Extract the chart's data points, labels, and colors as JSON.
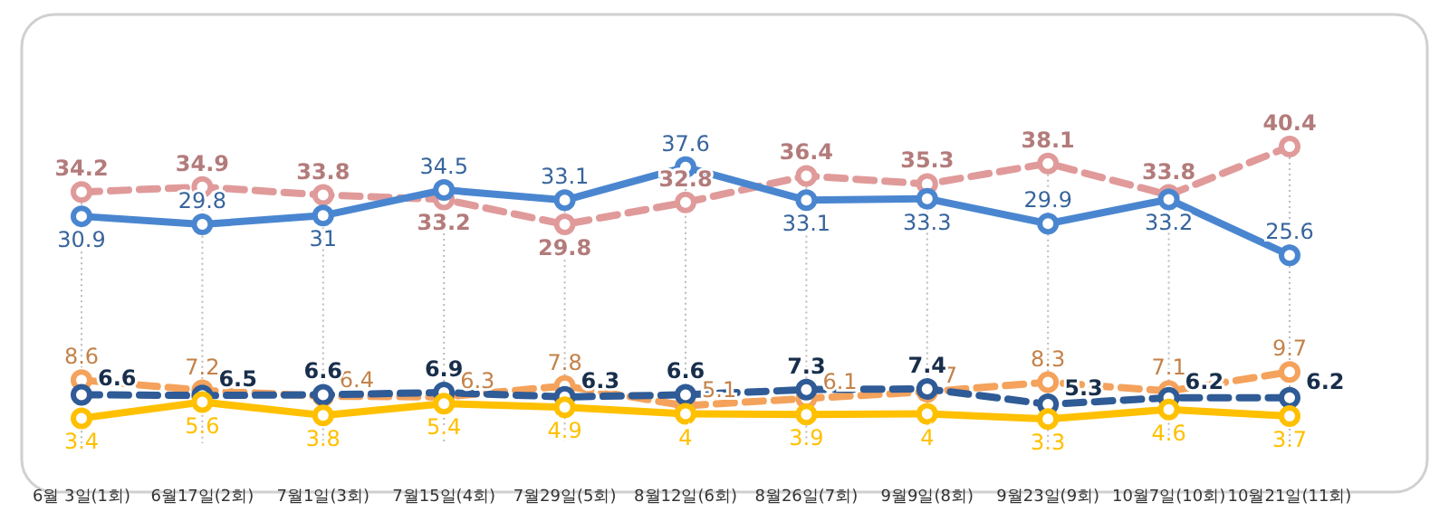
{
  "chart_data": {
    "type": "line",
    "categories": [
      "6월 3일(1회)",
      "6월17일(2회)",
      "7월1일(3회)",
      "7월15일(4회)",
      "7월29일(5회)",
      "8월12일(6회)",
      "8월26일(7회)",
      "9월9일(8회)",
      "9월23일(9회)",
      "10월7일(10회)",
      "10월21일(11회)"
    ],
    "series": [
      {
        "color": "#e09a9a",
        "line_style": "dashed",
        "values": [
          34.2,
          34.9,
          33.8,
          33.2,
          29.8,
          32.8,
          36.4,
          35.3,
          38.1,
          33.8,
          40.4
        ]
      },
      {
        "color": "#4a86d0",
        "line_style": "solid",
        "values": [
          30.9,
          29.8,
          31,
          34.5,
          33.1,
          37.6,
          33.1,
          33.3,
          29.9,
          33.2,
          25.6
        ]
      },
      {
        "color": "#f4a25c",
        "line_style": "dashed",
        "values": [
          8.6,
          7.2,
          6.4,
          6.3,
          7.8,
          5.1,
          6.1,
          7,
          8.3,
          7.1,
          9.7
        ]
      },
      {
        "color": "#2f5b96",
        "line_style": "dashed",
        "values": [
          6.6,
          6.5,
          6.6,
          6.9,
          6.3,
          6.6,
          7.3,
          7.4,
          5.3,
          6.2,
          6.2
        ]
      },
      {
        "color": "#ffc000",
        "line_style": "solid",
        "values": [
          3.4,
          5.6,
          3.8,
          5.4,
          4.9,
          4,
          3.9,
          4,
          3.3,
          4.6,
          3.7
        ]
      }
    ],
    "relative": false,
    "data_labels": true,
    "marker": "circle",
    "grid": "x"
  }
}
